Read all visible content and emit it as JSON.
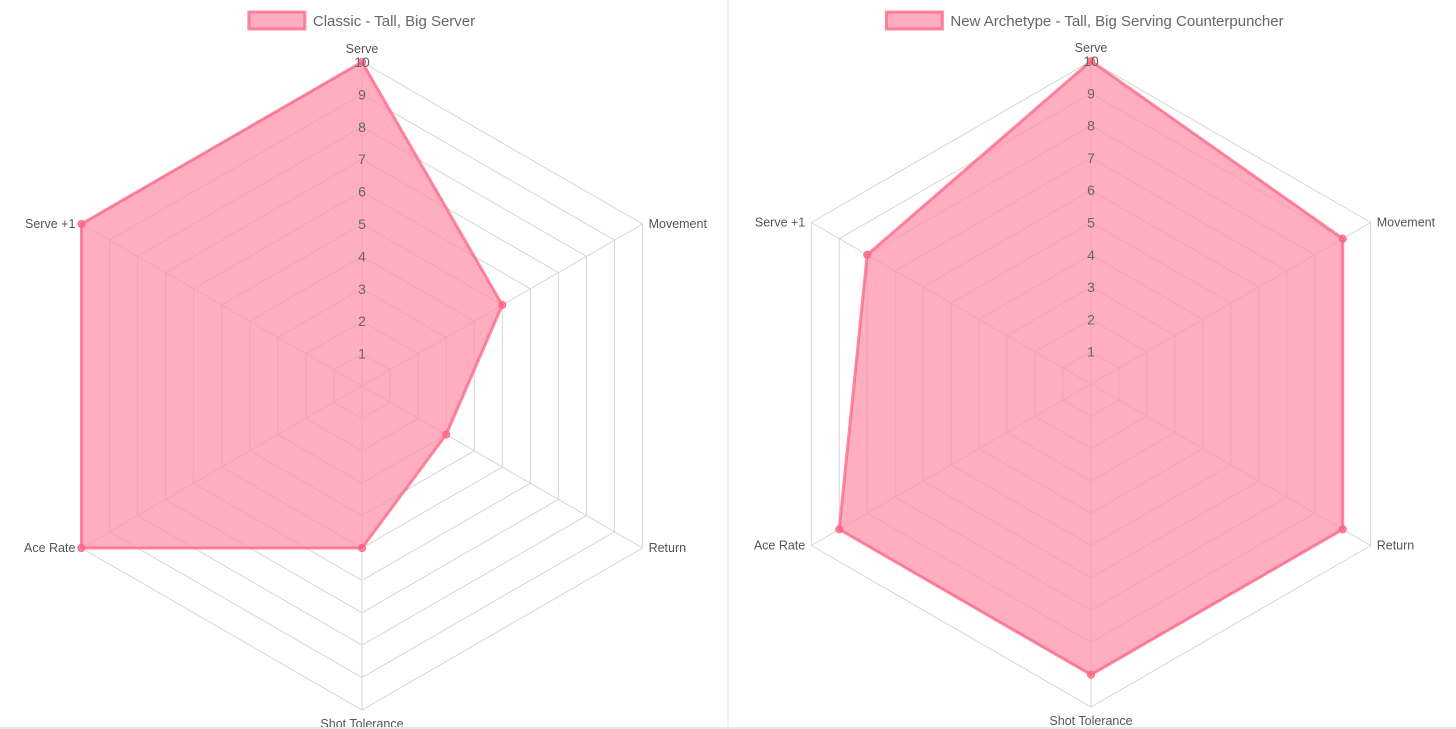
{
  "chart_data": [
    {
      "type": "radar",
      "axes": [
        "Serve",
        "Movement",
        "Return",
        "Shot Tolerance",
        "Ace Rate",
        "Serve +1"
      ],
      "rlim": [
        0,
        10
      ],
      "ticks": [
        "1",
        "2",
        "3",
        "4",
        "5",
        "6",
        "7",
        "8",
        "9",
        "10"
      ],
      "legend_position": "top",
      "series": [
        {
          "name": "Classic - Tall, Big Server",
          "values": [
            10,
            5,
            3,
            5,
            10,
            10
          ],
          "color": "#ff6384",
          "fill": "#ff8fa6"
        }
      ]
    },
    {
      "type": "radar",
      "axes": [
        "Serve",
        "Movement",
        "Return",
        "Shot Tolerance",
        "Ace Rate",
        "Serve +1"
      ],
      "rlim": [
        0,
        10
      ],
      "ticks": [
        "1",
        "2",
        "3",
        "4",
        "5",
        "6",
        "7",
        "8",
        "9",
        "10"
      ],
      "legend_position": "top",
      "series": [
        {
          "name": "New Archetype - Tall, Big Serving Counterpuncher",
          "values": [
            10,
            9,
            9,
            9,
            9,
            8
          ],
          "color": "#ff6384",
          "fill": "#ff8fa6"
        }
      ]
    }
  ]
}
